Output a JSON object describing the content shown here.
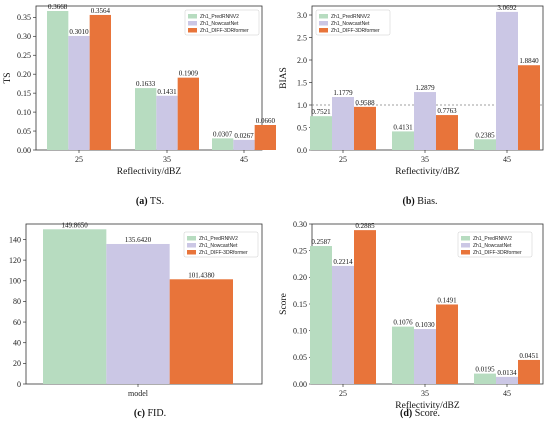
{
  "colors": {
    "s0": "#b7dcc0",
    "s1": "#cbc7e5",
    "s2": "#e8743a",
    "ref": "#808080"
  },
  "captions": [
    {
      "label": "(a)",
      "text": " TS."
    },
    {
      "label": "(b)",
      "text": " Bias."
    },
    {
      "label": "(c)",
      "text": " FID."
    },
    {
      "label": "(d)",
      "text": " Score."
    }
  ],
  "chart_data": [
    {
      "type": "bar",
      "title": "",
      "xlabel": "Reflectivity/dBZ",
      "ylabel": "TS",
      "categories": [
        "25",
        "35",
        "45"
      ],
      "ylim": [
        0,
        0.38
      ],
      "yticks": [
        "0.00",
        "0.05",
        "0.10",
        "0.15",
        "0.20",
        "0.25",
        "0.30",
        "0.35"
      ],
      "ytick_values": [
        0,
        0.05,
        0.1,
        0.15,
        0.2,
        0.25,
        0.3,
        0.35
      ],
      "legend_position": "upper-right",
      "series": [
        {
          "name": "Zh1_PredRNNV2",
          "values": [
            0.3668,
            0.1633,
            0.0307
          ],
          "labels": [
            "0.3668",
            "0.1633",
            "0.0307"
          ]
        },
        {
          "name": "Zh1_NowcastNet",
          "values": [
            0.301,
            0.1431,
            0.0267
          ],
          "labels": [
            "0.3010",
            "0.1431",
            "0.0267"
          ]
        },
        {
          "name": "Zh1_DIFF-3DRformer",
          "values": [
            0.3564,
            0.1909,
            0.066
          ],
          "labels": [
            "0.3564",
            "0.1909",
            "0.0660"
          ]
        }
      ]
    },
    {
      "type": "bar",
      "title": "",
      "xlabel": "Reflectivity/dBZ",
      "ylabel": "BIAS",
      "categories": [
        "25",
        "35",
        "45"
      ],
      "ylim": [
        0,
        3.2
      ],
      "yticks": [
        "0.0",
        "0.5",
        "1.0",
        "1.5",
        "2.0",
        "2.5",
        "3.0"
      ],
      "ytick_values": [
        0,
        0.5,
        1,
        1.5,
        2,
        2.5,
        3
      ],
      "reference_line": 1.0,
      "legend_position": "upper-left",
      "series": [
        {
          "name": "Zh1_PredRNNV2",
          "values": [
            0.7521,
            0.4131,
            0.2385
          ],
          "labels": [
            "0.7521",
            "0.4131",
            "0.2385"
          ]
        },
        {
          "name": "Zh1_NowcastNet",
          "values": [
            1.1779,
            1.2879,
            3.0692
          ],
          "labels": [
            "1.1779",
            "1.2879",
            "3.0692"
          ]
        },
        {
          "name": "Zh1_DIFF-3DRformer",
          "values": [
            0.9588,
            0.7763,
            1.884
          ],
          "labels": [
            "0.9588",
            "0.7763",
            "1.8840"
          ]
        }
      ]
    },
    {
      "type": "bar",
      "title": "",
      "xlabel": "",
      "ylabel": "FID",
      "categories": [
        "model"
      ],
      "ylim": [
        0,
        155
      ],
      "yticks": [
        "0",
        "20",
        "40",
        "60",
        "80",
        "100",
        "120",
        "140"
      ],
      "ytick_values": [
        0,
        20,
        40,
        60,
        80,
        100,
        120,
        140
      ],
      "legend_position": "upper-right",
      "series": [
        {
          "name": "Zh1_PredRNNV2",
          "values": [
            149.865
          ],
          "labels": [
            "149.8650"
          ]
        },
        {
          "name": "Zh1_NowcastNet",
          "values": [
            135.642
          ],
          "labels": [
            "135.6420"
          ]
        },
        {
          "name": "Zh1_DIFF-3DRformer",
          "values": [
            101.438
          ],
          "labels": [
            "101.4380"
          ]
        }
      ]
    },
    {
      "type": "bar",
      "title": "",
      "xlabel": "Reflectivity/dBZ",
      "ylabel": "Score",
      "categories": [
        "25",
        "35",
        "45"
      ],
      "ylim": [
        0,
        0.3
      ],
      "yticks": [
        "0.00",
        "0.05",
        "0.10",
        "0.15",
        "0.20",
        "0.25",
        "0.30"
      ],
      "ytick_values": [
        0,
        0.05,
        0.1,
        0.15,
        0.2,
        0.25,
        0.3
      ],
      "legend_position": "upper-right",
      "series": [
        {
          "name": "Zh1_PredRNNV2",
          "values": [
            0.2587,
            0.1076,
            0.0195
          ],
          "labels": [
            "0.2587",
            "0.1076",
            "0.0195"
          ]
        },
        {
          "name": "Zh1_NowcastNet",
          "values": [
            0.2214,
            0.103,
            0.0134
          ],
          "labels": [
            "0.2214",
            "0.1030",
            "0.0134"
          ]
        },
        {
          "name": "Zh1_DIFF-3DRformer",
          "values": [
            0.2885,
            0.1491,
            0.0451
          ],
          "labels": [
            "0.2885",
            "0.1491",
            "0.0451"
          ]
        }
      ]
    }
  ]
}
